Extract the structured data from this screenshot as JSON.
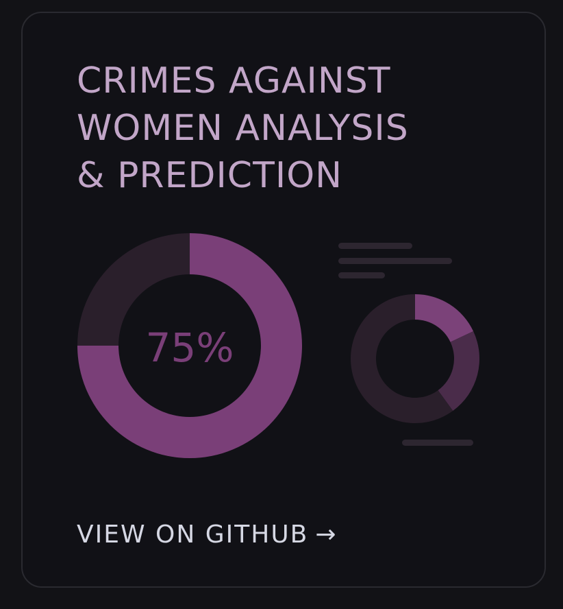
{
  "card": {
    "title_lines": [
      "CRIMES AGAINST",
      "WOMEN ANALYSIS",
      "& PREDICTION"
    ],
    "link": {
      "label": "VIEW ON GITHUB",
      "arrow": "→"
    }
  },
  "chart_data": [
    {
      "type": "pie",
      "style": "donut",
      "center_label": "75%",
      "slices": [
        {
          "value": 75,
          "color": "#7a3f78"
        },
        {
          "value": 25,
          "color": "#2a1f2b"
        }
      ]
    },
    {
      "type": "pie",
      "style": "donut",
      "slices": [
        {
          "value": 18,
          "color": "#7b4279"
        },
        {
          "value": 22,
          "color": "#4a2c4a"
        },
        {
          "value": 60,
          "color": "#2a1f2b"
        }
      ]
    }
  ],
  "colors": {
    "background": "#121216",
    "card_border": "#2a2a30",
    "title": "#c2a6c8",
    "accent": "#7a3f78",
    "link": "#d6d8e4",
    "placeholder_lines": "#2d2630"
  },
  "decorations": {
    "placeholder_lines": "four muted text-placeholder bars beside the small donut"
  }
}
